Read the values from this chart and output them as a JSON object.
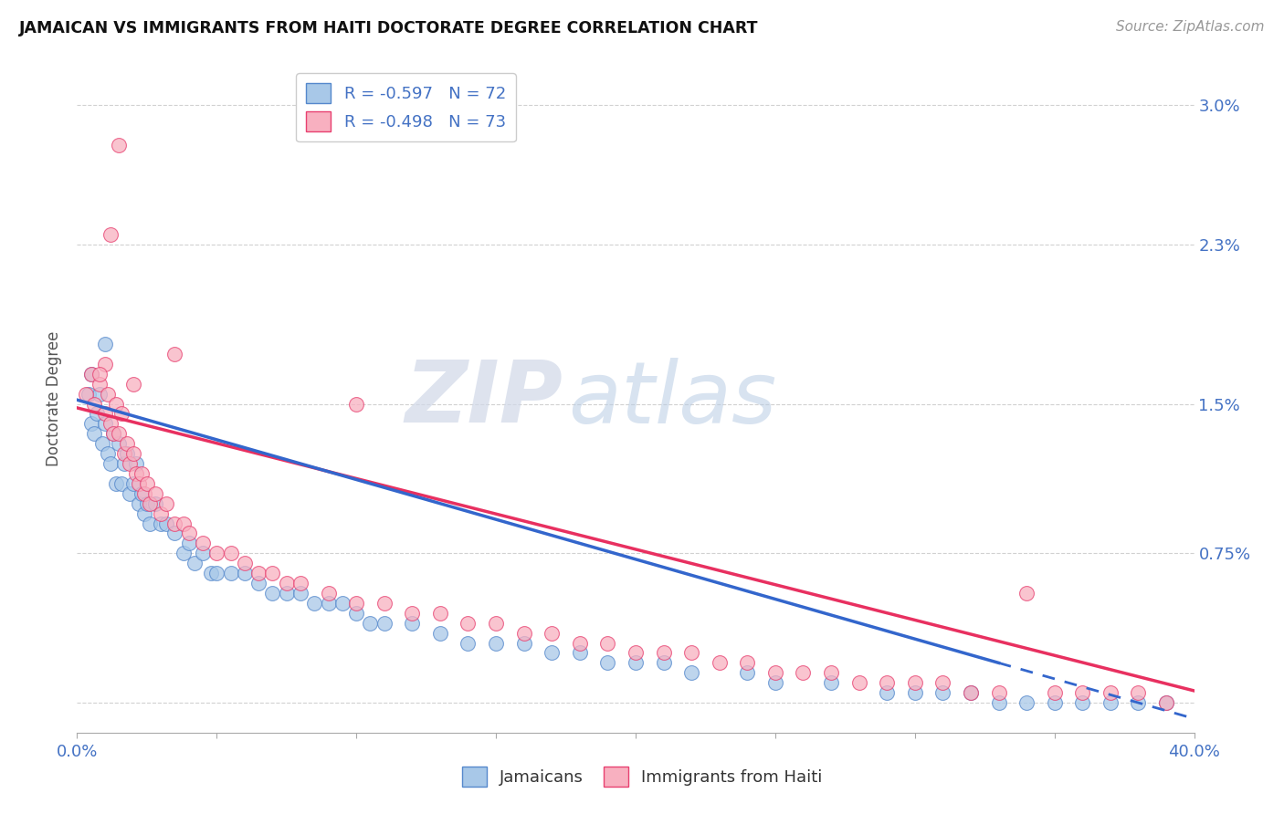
{
  "title": "JAMAICAN VS IMMIGRANTS FROM HAITI DOCTORATE DEGREE CORRELATION CHART",
  "source": "Source: ZipAtlas.com",
  "ylabel": "Doctorate Degree",
  "xlim": [
    0.0,
    40.0
  ],
  "ylim": [
    -0.15,
    3.2
  ],
  "y_ticks": [
    0.0,
    0.75,
    1.5,
    2.3,
    3.0
  ],
  "y_tick_labels": [
    "",
    "0.75%",
    "1.5%",
    "2.3%",
    "3.0%"
  ],
  "x_tick_positions": [
    0,
    5,
    10,
    15,
    20,
    25,
    30,
    35,
    40
  ],
  "legend_r1": "R = -0.597   N = 72",
  "legend_r2": "R = -0.498   N = 73",
  "color_jamaican_fill": "#a8c8e8",
  "color_jamaican_edge": "#5588cc",
  "color_haiti_fill": "#f8b0c0",
  "color_haiti_edge": "#e84070",
  "color_line_jamaican": "#3366cc",
  "color_line_haiti": "#e83060",
  "background_color": "#ffffff",
  "grid_color": "#cccccc",
  "watermark_zip": "ZIP",
  "watermark_atlas": "atlas",
  "j_line_start_y": 1.52,
  "j_line_end_y": -0.08,
  "h_line_start_y": 1.48,
  "h_line_end_y": 0.06,
  "jamaican_x": [
    0.4,
    0.5,
    0.6,
    0.7,
    0.8,
    0.9,
    1.0,
    1.1,
    1.2,
    1.3,
    1.4,
    1.5,
    1.6,
    1.7,
    1.8,
    1.9,
    2.0,
    2.1,
    2.2,
    2.3,
    2.4,
    2.5,
    2.6,
    2.8,
    3.0,
    3.2,
    3.5,
    3.8,
    4.0,
    4.2,
    4.5,
    4.8,
    5.0,
    5.5,
    6.0,
    6.5,
    7.0,
    7.5,
    8.0,
    8.5,
    9.0,
    9.5,
    10.0,
    10.5,
    11.0,
    12.0,
    13.0,
    14.0,
    15.0,
    16.0,
    17.0,
    18.0,
    19.0,
    20.0,
    21.0,
    22.0,
    24.0,
    25.0,
    27.0,
    29.0,
    30.0,
    31.0,
    32.0,
    33.0,
    34.0,
    35.0,
    36.0,
    37.0,
    38.0,
    39.0,
    1.0,
    0.5
  ],
  "jamaican_y": [
    1.55,
    1.4,
    1.35,
    1.45,
    1.55,
    1.3,
    1.4,
    1.25,
    1.2,
    1.35,
    1.1,
    1.3,
    1.1,
    1.2,
    1.25,
    1.05,
    1.1,
    1.2,
    1.0,
    1.05,
    0.95,
    1.0,
    0.9,
    1.0,
    0.9,
    0.9,
    0.85,
    0.75,
    0.8,
    0.7,
    0.75,
    0.65,
    0.65,
    0.65,
    0.65,
    0.6,
    0.55,
    0.55,
    0.55,
    0.5,
    0.5,
    0.5,
    0.45,
    0.4,
    0.4,
    0.4,
    0.35,
    0.3,
    0.3,
    0.3,
    0.25,
    0.25,
    0.2,
    0.2,
    0.2,
    0.15,
    0.15,
    0.1,
    0.1,
    0.05,
    0.05,
    0.05,
    0.05,
    0.0,
    0.0,
    0.0,
    0.0,
    0.0,
    0.0,
    0.0,
    1.8,
    1.65
  ],
  "haiti_x": [
    0.3,
    0.5,
    0.6,
    0.8,
    1.0,
    1.1,
    1.2,
    1.3,
    1.4,
    1.5,
    1.6,
    1.7,
    1.8,
    1.9,
    2.0,
    2.1,
    2.2,
    2.3,
    2.4,
    2.5,
    2.6,
    2.8,
    3.0,
    3.2,
    3.5,
    3.8,
    4.0,
    4.5,
    5.0,
    5.5,
    6.0,
    6.5,
    7.0,
    7.5,
    8.0,
    9.0,
    10.0,
    11.0,
    12.0,
    13.0,
    14.0,
    15.0,
    16.0,
    17.0,
    18.0,
    19.0,
    20.0,
    21.0,
    22.0,
    23.0,
    24.0,
    25.0,
    26.0,
    27.0,
    28.0,
    29.0,
    30.0,
    31.0,
    32.0,
    33.0,
    34.0,
    35.0,
    36.0,
    37.0,
    38.0,
    39.0,
    1.5,
    10.0,
    3.5,
    2.0,
    1.2,
    1.0,
    0.8
  ],
  "haiti_y": [
    1.55,
    1.65,
    1.5,
    1.6,
    1.45,
    1.55,
    1.4,
    1.35,
    1.5,
    1.35,
    1.45,
    1.25,
    1.3,
    1.2,
    1.25,
    1.15,
    1.1,
    1.15,
    1.05,
    1.1,
    1.0,
    1.05,
    0.95,
    1.0,
    0.9,
    0.9,
    0.85,
    0.8,
    0.75,
    0.75,
    0.7,
    0.65,
    0.65,
    0.6,
    0.6,
    0.55,
    0.5,
    0.5,
    0.45,
    0.45,
    0.4,
    0.4,
    0.35,
    0.35,
    0.3,
    0.3,
    0.25,
    0.25,
    0.25,
    0.2,
    0.2,
    0.15,
    0.15,
    0.15,
    0.1,
    0.1,
    0.1,
    0.1,
    0.05,
    0.05,
    0.55,
    0.05,
    0.05,
    0.05,
    0.05,
    0.0,
    2.8,
    1.5,
    1.75,
    1.6,
    2.35,
    1.7,
    1.65
  ]
}
